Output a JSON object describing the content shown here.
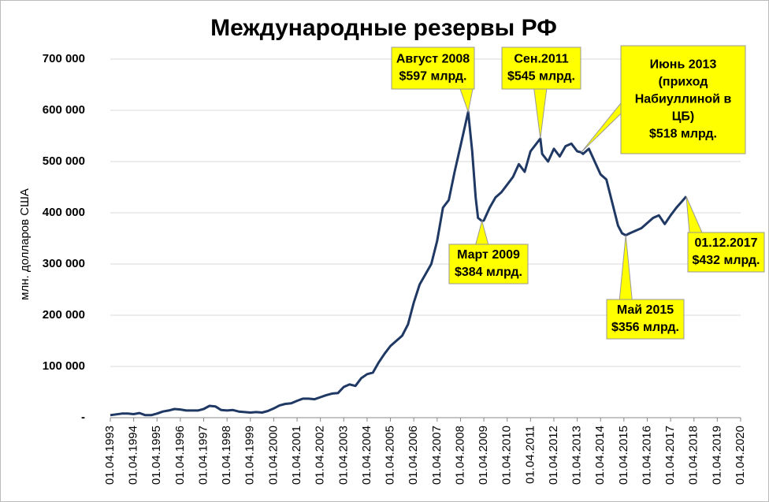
{
  "chart_data": {
    "type": "line",
    "title": "Международные резервы РФ",
    "y_label": "млн. долларов США",
    "grid": true,
    "xlim": [
      1993.25,
      2020.25
    ],
    "ylim": [
      0,
      700000
    ],
    "yticks": [
      {
        "value": 0,
        "label": "-"
      },
      {
        "value": 100000,
        "label": "100 000"
      },
      {
        "value": 200000,
        "label": "200 000"
      },
      {
        "value": 300000,
        "label": "300 000"
      },
      {
        "value": 400000,
        "label": "400 000"
      },
      {
        "value": 500000,
        "label": "500 000"
      },
      {
        "value": 600000,
        "label": "600 000"
      },
      {
        "value": 700000,
        "label": "700 000"
      }
    ],
    "xticks": [
      {
        "value": 1993.25,
        "label": "01.04.1993"
      },
      {
        "value": 1994.25,
        "label": "01.04.1994"
      },
      {
        "value": 1995.25,
        "label": "01.04.1995"
      },
      {
        "value": 1996.25,
        "label": "01.04.1996"
      },
      {
        "value": 1997.25,
        "label": "01.04.1997"
      },
      {
        "value": 1998.25,
        "label": "01.04.1998"
      },
      {
        "value": 1999.25,
        "label": "01.04.1999"
      },
      {
        "value": 2000.25,
        "label": "01.04.2000"
      },
      {
        "value": 2001.25,
        "label": "01.04.2001"
      },
      {
        "value": 2002.25,
        "label": "01.04.2002"
      },
      {
        "value": 2003.25,
        "label": "01.04.2003"
      },
      {
        "value": 2004.25,
        "label": "01.04.2004"
      },
      {
        "value": 2005.25,
        "label": "01.04.2005"
      },
      {
        "value": 2006.25,
        "label": "01.04.2006"
      },
      {
        "value": 2007.25,
        "label": "01.04.2007"
      },
      {
        "value": 2008.25,
        "label": "01.04.2008"
      },
      {
        "value": 2009.25,
        "label": "01.04.2009"
      },
      {
        "value": 2010.25,
        "label": "01.04.2010"
      },
      {
        "value": 2011.25,
        "label": "01.04.2011"
      },
      {
        "value": 2012.25,
        "label": "01.04.2012"
      },
      {
        "value": 2013.25,
        "label": "01.04.2013"
      },
      {
        "value": 2014.25,
        "label": "01.04.2014"
      },
      {
        "value": 2015.25,
        "label": "01.04.2015"
      },
      {
        "value": 2016.25,
        "label": "01.04.2016"
      },
      {
        "value": 2017.25,
        "label": "01.04.2017"
      },
      {
        "value": 2018.25,
        "label": "01.04.2018"
      },
      {
        "value": 2019.25,
        "label": "01.04.2019"
      },
      {
        "value": 2020.25,
        "label": "01.04.2020"
      }
    ],
    "color": "#1f3864",
    "x": [
      1993.25,
      1993.75,
      1994.0,
      1994.25,
      1994.5,
      1994.75,
      1995.0,
      1995.25,
      1995.5,
      1995.75,
      1996.0,
      1996.25,
      1996.5,
      1996.75,
      1997.0,
      1997.25,
      1997.5,
      1997.75,
      1998.0,
      1998.25,
      1998.5,
      1998.75,
      1999.0,
      1999.25,
      1999.5,
      1999.75,
      2000.0,
      2000.25,
      2000.5,
      2000.75,
      2001.0,
      2001.25,
      2001.5,
      2001.75,
      2002.0,
      2002.25,
      2002.5,
      2002.75,
      2003.0,
      2003.25,
      2003.5,
      2003.75,
      2004.0,
      2004.25,
      2004.5,
      2004.75,
      2005.0,
      2005.25,
      2005.5,
      2005.75,
      2006.0,
      2006.25,
      2006.5,
      2006.75,
      2007.0,
      2007.25,
      2007.5,
      2007.75,
      2008.0,
      2008.25,
      2008.58,
      2008.75,
      2008.9,
      2009.0,
      2009.17,
      2009.25,
      2009.5,
      2009.75,
      2010.0,
      2010.25,
      2010.5,
      2010.75,
      2011.0,
      2011.25,
      2011.67,
      2011.75,
      2012.0,
      2012.25,
      2012.5,
      2012.75,
      2013.0,
      2013.25,
      2013.42,
      2013.5,
      2013.75,
      2014.0,
      2014.25,
      2014.5,
      2014.75,
      2015.0,
      2015.17,
      2015.33,
      2015.5,
      2015.75,
      2016.0,
      2016.25,
      2016.5,
      2016.75,
      2017.0,
      2017.25,
      2017.5,
      2017.75,
      2017.92
    ],
    "values": [
      5000,
      8000,
      8000,
      7000,
      9000,
      5000,
      5000,
      8000,
      12000,
      14000,
      17000,
      16000,
      14000,
      14000,
      14000,
      17000,
      23000,
      22000,
      15000,
      14000,
      15000,
      12000,
      11000,
      10000,
      11000,
      10000,
      13000,
      18000,
      24000,
      27000,
      28000,
      33000,
      37000,
      37000,
      36000,
      40000,
      44000,
      47000,
      48000,
      60000,
      65000,
      62000,
      77000,
      85000,
      88000,
      108000,
      125000,
      140000,
      150000,
      160000,
      182000,
      225000,
      260000,
      280000,
      300000,
      345000,
      410000,
      425000,
      480000,
      530000,
      597000,
      520000,
      430000,
      390000,
      384000,
      385000,
      410000,
      430000,
      440000,
      455000,
      470000,
      495000,
      480000,
      520000,
      545000,
      515000,
      500000,
      525000,
      510000,
      530000,
      535000,
      520000,
      518000,
      515000,
      525000,
      500000,
      475000,
      465000,
      420000,
      375000,
      360000,
      356000,
      360000,
      365000,
      370000,
      380000,
      390000,
      395000,
      378000,
      395000,
      410000,
      423000,
      432000
    ],
    "annotations": [
      {
        "text": [
          "Август 2008",
          "$597 млрд."
        ],
        "x": 2008.58,
        "y": 597000
      },
      {
        "text": [
          "Март 2009",
          "$384 млрд."
        ],
        "x": 2009.17,
        "y": 384000
      },
      {
        "text": [
          "Сен.2011",
          "$545 млрд."
        ],
        "x": 2011.67,
        "y": 545000
      },
      {
        "text": [
          "Июнь 2013",
          "(приход",
          "Набиуллиной в",
          "ЦБ)",
          "$518 млрд."
        ],
        "x": 2013.42,
        "y": 518000
      },
      {
        "text": [
          "Май 2015",
          "$356 млрд."
        ],
        "x": 2015.33,
        "y": 356000
      },
      {
        "text": [
          "01.12.2017",
          "$432 млрд."
        ],
        "x": 2017.92,
        "y": 432000
      }
    ]
  }
}
